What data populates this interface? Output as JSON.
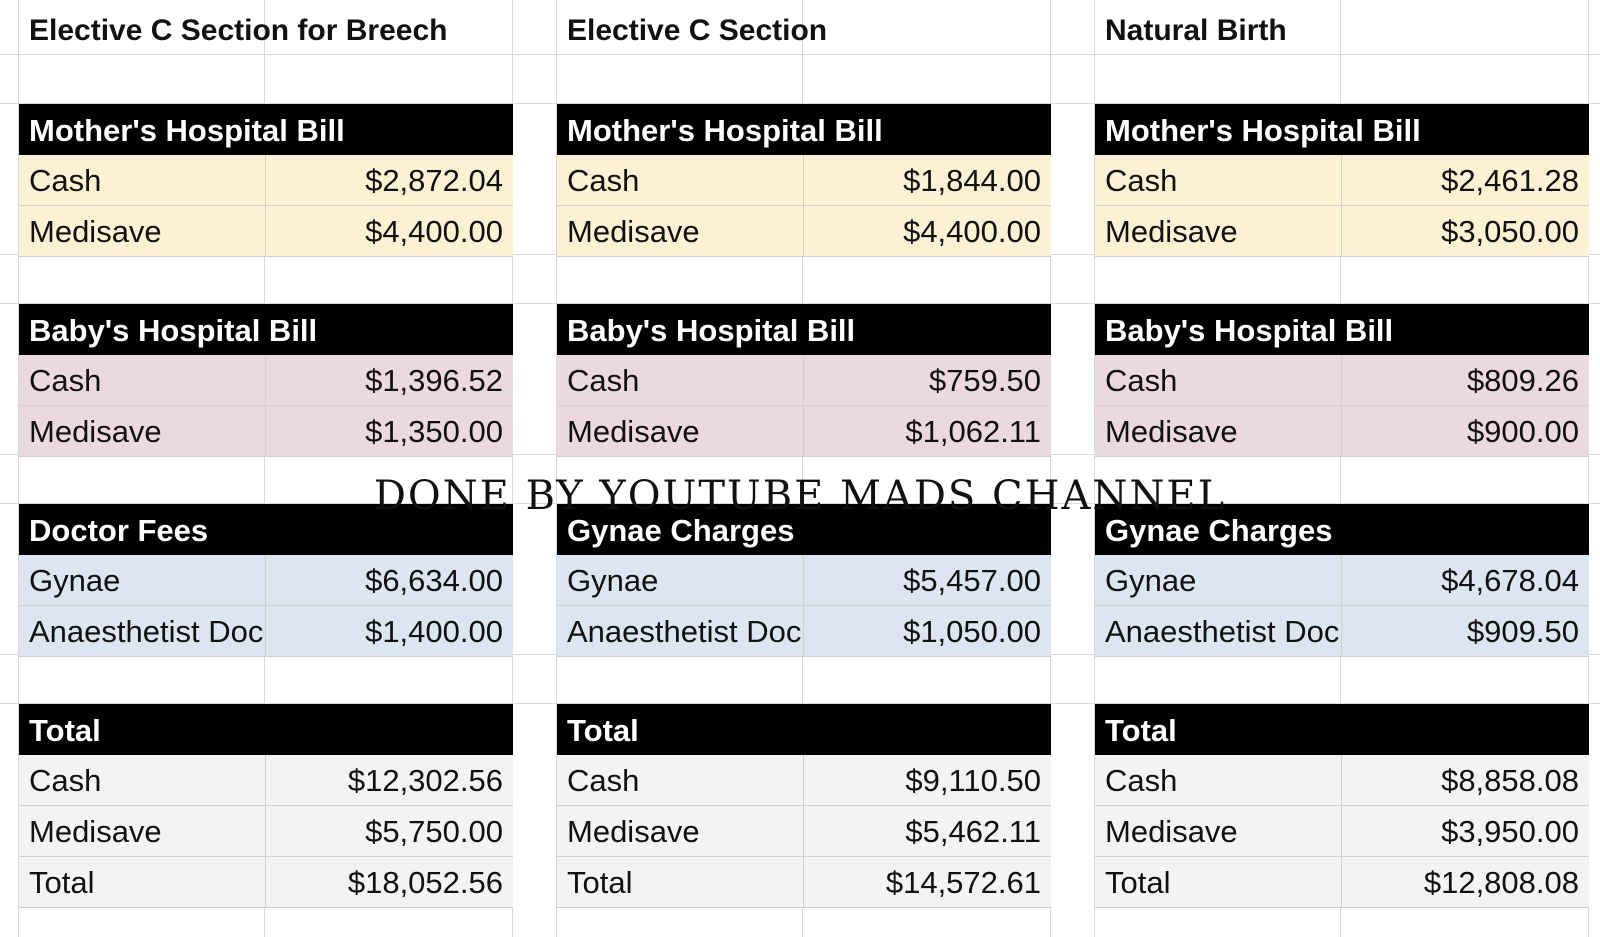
{
  "watermark": "DONE BY YOUTUBE MADS CHANNEL",
  "columns": [
    {
      "title": "Elective C Section for Breech",
      "sections": [
        {
          "header": "Mother's Hospital Bill",
          "rows": [
            {
              "label": "Cash",
              "value": "$2,872.04"
            },
            {
              "label": "Medisave",
              "value": "$4,400.00"
            }
          ]
        },
        {
          "header": "Baby's Hospital Bill",
          "rows": [
            {
              "label": "Cash",
              "value": "$1,396.52"
            },
            {
              "label": "Medisave",
              "value": "$1,350.00"
            }
          ]
        },
        {
          "header": "Doctor Fees",
          "rows": [
            {
              "label": "Gynae",
              "value": "$6,634.00"
            },
            {
              "label": "Anaesthetist Doc",
              "value": "$1,400.00"
            }
          ]
        },
        {
          "header": "Total",
          "rows": [
            {
              "label": "Cash",
              "value": "$12,302.56"
            },
            {
              "label": "Medisave",
              "value": "$5,750.00"
            },
            {
              "label": "Total",
              "value": "$18,052.56"
            }
          ]
        }
      ]
    },
    {
      "title": "Elective C Section",
      "sections": [
        {
          "header": "Mother's Hospital Bill",
          "rows": [
            {
              "label": "Cash",
              "value": "$1,844.00"
            },
            {
              "label": "Medisave",
              "value": "$4,400.00"
            }
          ]
        },
        {
          "header": "Baby's Hospital Bill",
          "rows": [
            {
              "label": "Cash",
              "value": "$759.50"
            },
            {
              "label": "Medisave",
              "value": "$1,062.11"
            }
          ]
        },
        {
          "header": "Gynae Charges",
          "rows": [
            {
              "label": "Gynae",
              "value": "$5,457.00"
            },
            {
              "label": "Anaesthetist Doc",
              "value": "$1,050.00"
            }
          ]
        },
        {
          "header": "Total",
          "rows": [
            {
              "label": "Cash",
              "value": "$9,110.50"
            },
            {
              "label": "Medisave",
              "value": "$5,462.11"
            },
            {
              "label": "Total",
              "value": "$14,572.61"
            }
          ]
        }
      ]
    },
    {
      "title": "Natural Birth",
      "sections": [
        {
          "header": "Mother's Hospital Bill",
          "rows": [
            {
              "label": "Cash",
              "value": "$2,461.28"
            },
            {
              "label": "Medisave",
              "value": "$3,050.00"
            }
          ]
        },
        {
          "header": "Baby's Hospital Bill",
          "rows": [
            {
              "label": "Cash",
              "value": "$809.26"
            },
            {
              "label": "Medisave",
              "value": "$900.00"
            }
          ]
        },
        {
          "header": "Gynae Charges",
          "rows": [
            {
              "label": "Gynae",
              "value": "$4,678.04"
            },
            {
              "label": "Anaesthetist Doc",
              "value": "$909.50"
            }
          ]
        },
        {
          "header": "Total",
          "rows": [
            {
              "label": "Cash",
              "value": "$8,858.08"
            },
            {
              "label": "Medisave",
              "value": "$3,950.00"
            },
            {
              "label": "Total",
              "value": "$12,808.08"
            }
          ]
        }
      ]
    }
  ]
}
